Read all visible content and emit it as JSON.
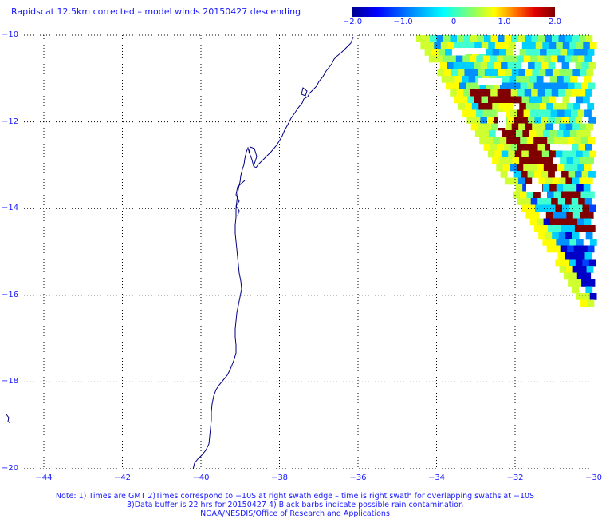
{
  "title": "Rapidscat 12.5km corrected – model winds 20150427 descending",
  "colorbar": {
    "ticks": [
      "−2.0",
      "−1.0",
      "0",
      "1.0",
      "2.0"
    ],
    "tick_values": [
      -2.0,
      -1.0,
      0,
      1.0,
      2.0
    ],
    "range": [
      -2.0,
      2.0
    ]
  },
  "lat_labels": [
    "−10",
    "−12",
    "−14",
    "−16",
    "−18",
    "−20"
  ],
  "lon_labels": [
    "−44",
    "−42",
    "−40",
    "−38",
    "−36",
    "−34",
    "−32",
    "−30"
  ],
  "notes": [
    "Note: 1) Times are GMT 2)Times correspond to −10S at right swath edge – time is right swath for overlapping swaths at −10S",
    "3)Data buffer is 22 hrs for 20150427 4) Black barbs indicate possible rain contamination",
    "NOAA/NESDIS/Office of Research and Applications"
  ],
  "colors": {
    "text": "#1a1aff",
    "coast": "#000080",
    "grid": "#000000",
    "high": "#800000"
  }
}
